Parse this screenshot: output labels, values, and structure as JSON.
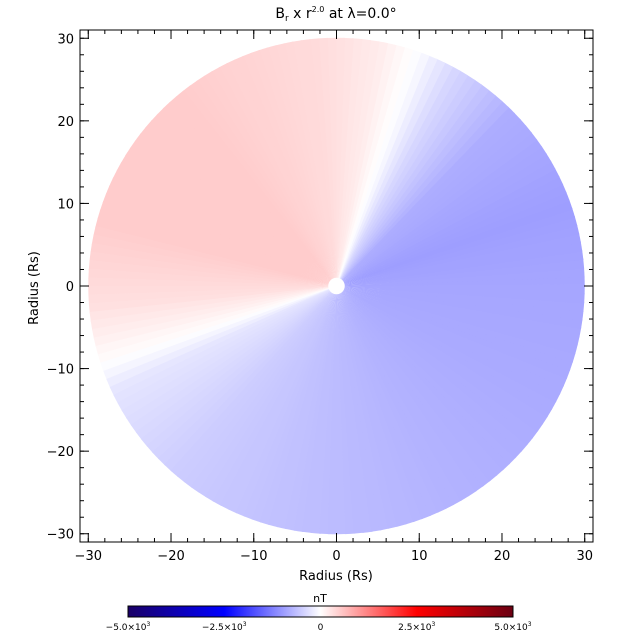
{
  "chart_data": {
    "type": "heatmap",
    "title": {
      "prefix": "B",
      "subscript": "r",
      "middle": " x r",
      "superscript": "2.0",
      "suffix": " at λ=0.0°"
    },
    "xlabel": "Radius (Rs)",
    "ylabel": "Radius (Rs)",
    "xlim": [
      -31,
      31
    ],
    "ylim": [
      -31,
      31
    ],
    "x_ticks": [
      -30,
      -20,
      -10,
      0,
      10,
      20,
      30
    ],
    "y_ticks": [
      -30,
      -20,
      -10,
      0,
      10,
      20,
      30
    ],
    "x_tick_labels": [
      "−30",
      "−20",
      "−10",
      "0",
      "10",
      "20",
      "30"
    ],
    "y_tick_labels": [
      "−30",
      "−20",
      "−10",
      "0",
      "10",
      "20",
      "30"
    ],
    "disk_radius": 30,
    "inner_radius": 1,
    "polarity_field": {
      "description_of_sectors_deg_ccw_from_east": [
        {
          "start": 72,
          "end": 200,
          "sign": "positive"
        },
        {
          "start": 200,
          "end": 432,
          "sign": "negative"
        }
      ],
      "samples": [
        {
          "angle_deg": 0,
          "value": -0.35
        },
        {
          "angle_deg": 20,
          "value": -0.38
        },
        {
          "angle_deg": 45,
          "value": -0.32
        },
        {
          "angle_deg": 62,
          "value": -0.15
        },
        {
          "angle_deg": 70,
          "value": -0.02
        },
        {
          "angle_deg": 80,
          "value": 0.08
        },
        {
          "angle_deg": 95,
          "value": 0.14
        },
        {
          "angle_deg": 130,
          "value": 0.2
        },
        {
          "angle_deg": 165,
          "value": 0.2
        },
        {
          "angle_deg": 185,
          "value": 0.12
        },
        {
          "angle_deg": 197,
          "value": 0.02
        },
        {
          "angle_deg": 205,
          "value": -0.1
        },
        {
          "angle_deg": 230,
          "value": -0.2
        },
        {
          "angle_deg": 260,
          "value": -0.25
        },
        {
          "angle_deg": 300,
          "value": -0.3
        },
        {
          "angle_deg": 330,
          "value": -0.33
        },
        {
          "angle_deg": 360,
          "value": -0.35
        }
      ]
    },
    "colorbar": {
      "unit": "nT",
      "min": -5.0,
      "max": 5.0,
      "ticks": [
        {
          "value": -5.0,
          "mantissa": "−5.0×10",
          "exp": "3"
        },
        {
          "value": -2.5,
          "mantissa": "−2.5×10",
          "exp": "3"
        },
        {
          "value": 0,
          "mantissa": "0",
          "exp": ""
        },
        {
          "value": 2.5,
          "mantissa": "2.5×10",
          "exp": "3"
        },
        {
          "value": 5.0,
          "mantissa": "5.0×10",
          "exp": "3"
        }
      ],
      "colors": [
        "#1a0066",
        "#0000ff",
        "#ffffff",
        "#ff0000",
        "#6b0012"
      ]
    },
    "grid": false
  }
}
